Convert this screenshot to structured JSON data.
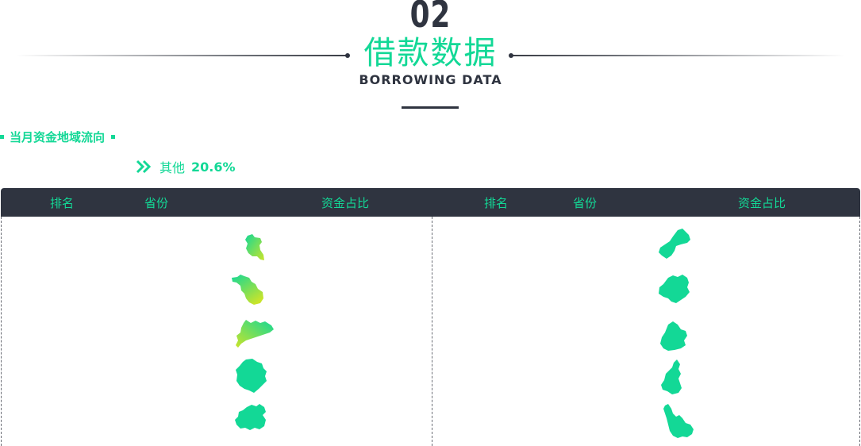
{
  "section": {
    "number": "02",
    "title": "借款数据",
    "subtitle": "BORROWING DATA"
  },
  "subhead": "当月资金地域流向",
  "other": {
    "label": "其他",
    "percent": "20.6%"
  },
  "table": {
    "left_headers": [
      "排名",
      "省份",
      "资金占比"
    ],
    "right_headers": [
      "排名",
      "省份",
      "资金占比"
    ],
    "left_rows": [
      {
        "map_icon": "province-shape-1-icon",
        "fill": "gradient"
      },
      {
        "map_icon": "province-shape-2-icon",
        "fill": "gradient"
      },
      {
        "map_icon": "province-shape-3-icon",
        "fill": "gradient"
      },
      {
        "map_icon": "province-shape-4-icon",
        "fill": "solid"
      },
      {
        "map_icon": "province-shape-5-icon",
        "fill": "solid"
      }
    ],
    "right_rows": [
      {
        "map_icon": "province-shape-6-icon",
        "fill": "solid"
      },
      {
        "map_icon": "province-shape-7-icon",
        "fill": "solid"
      },
      {
        "map_icon": "province-shape-8-icon",
        "fill": "solid"
      },
      {
        "map_icon": "province-shape-9-icon",
        "fill": "solid"
      },
      {
        "map_icon": "province-shape-10-icon",
        "fill": "solid"
      }
    ]
  },
  "colors": {
    "accent": "#13d896",
    "dark": "#2f3440",
    "gradient_yellow": "#c9e42a"
  }
}
